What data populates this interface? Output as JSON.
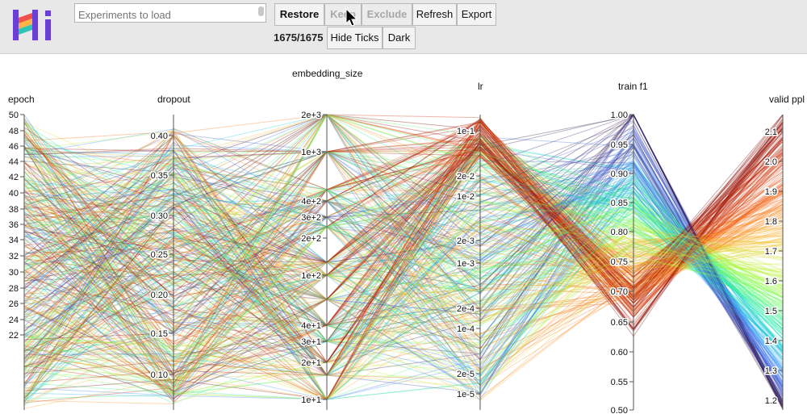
{
  "header": {
    "search_placeholder": "Experiments to load",
    "buttons": {
      "restore": "Restore",
      "keep": "Keep",
      "exclude": "Exclude",
      "refresh": "Refresh",
      "export": "Export",
      "hide_ticks": "Hide Ticks",
      "dark": "Dark"
    },
    "selection_count": "1675/1675"
  },
  "chart_data": {
    "type": "parallel-coordinates",
    "axes": [
      {
        "name": "epoch",
        "ticks": [
          "50",
          "48",
          "46",
          "44",
          "42",
          "40",
          "38",
          "36",
          "34",
          "32",
          "30",
          "28",
          "26",
          "24",
          "22"
        ],
        "range": [
          22,
          50
        ]
      },
      {
        "name": "dropout",
        "ticks": [
          "0.40",
          "0.35",
          "0.30",
          "0.25",
          "0.20",
          "0.15",
          "0.10"
        ],
        "range": [
          0.05,
          0.42
        ]
      },
      {
        "name": "embedding_size",
        "ticks": [
          "2e+3",
          "1e+3",
          "4e+2",
          "3e+2",
          "2e+2",
          "1e+2",
          "4e+1",
          "3e+1",
          "2e+1",
          "1e+1"
        ],
        "scale": "log",
        "range": [
          10,
          2000
        ]
      },
      {
        "name": "lr",
        "ticks": [
          "1e-1",
          "2e-2",
          "1e-2",
          "2e-3",
          "1e-3",
          "2e-4",
          "1e-4",
          "2e-5",
          "1e-5"
        ],
        "scale": "log"
      },
      {
        "name": "train f1",
        "ticks": [
          "1.00",
          "0.95",
          "0.90",
          "0.85",
          "0.80",
          "0.75",
          "0.70",
          "0.65",
          "0.60",
          "0.55",
          "0.50"
        ],
        "range": [
          0.5,
          1.0
        ]
      },
      {
        "name": "valid ppl",
        "ticks": [
          "2.1",
          "2.0",
          "1.9",
          "1.8",
          "1.7",
          "1.6",
          "1.5",
          "1.4",
          "1.3",
          "1.2"
        ],
        "range": [
          1.17,
          2.17
        ]
      }
    ],
    "color_by": "valid ppl",
    "colormap": [
      "#30123b",
      "#4145ab",
      "#4675ed",
      "#39a2fc",
      "#1bcfd4",
      "#24eca6",
      "#61fc6c",
      "#a4fc3b",
      "#d1e834",
      "#f3c63a",
      "#fe9b2d",
      "#f36315",
      "#d93806",
      "#b11901",
      "#7a0402"
    ]
  }
}
